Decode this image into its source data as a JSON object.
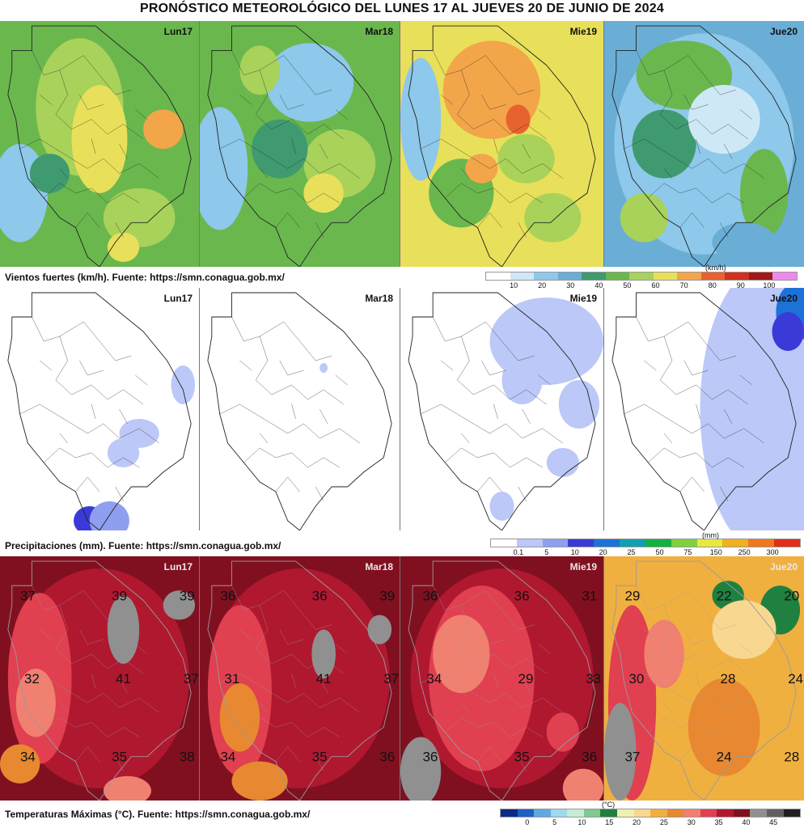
{
  "title": "PRONÓSTICO METEOROLÓGICO DEL LUNES 17 AL JUEVES 20 DE JUNIO DE 2024",
  "days": [
    "Lun17",
    "Mar18",
    "Mie19",
    "Jue20"
  ],
  "wind": {
    "caption": "Vientos fuertes (km/h).  Fuente: https://smn.conagua.gob.mx/",
    "unit": "(km/h)",
    "ticks": [
      "10",
      "20",
      "30",
      "40",
      "50",
      "60",
      "70",
      "80",
      "90",
      "100"
    ],
    "colors": [
      "#ffffff",
      "#cfe8f5",
      "#8ec8ea",
      "#6aaed6",
      "#3f9a70",
      "#6ab74e",
      "#a8d25a",
      "#e8e05a",
      "#f3a54a",
      "#e8622f",
      "#d03020",
      "#a01818",
      "#ee88ee"
    ]
  },
  "precip": {
    "caption": "Precipitaciones (mm).  Fuente: https://smn.conagua.gob.mx/",
    "unit": "(mm)",
    "ticks": [
      "0.1",
      "5",
      "10",
      "20",
      "25",
      "50",
      "75",
      "150",
      "250",
      "300"
    ],
    "colors": [
      "#ffffff",
      "#bcc8f7",
      "#8f9ff0",
      "#3a3ad8",
      "#1d72d8",
      "#10a0b0",
      "#14b040",
      "#80d040",
      "#e8e840",
      "#f0b020",
      "#f07820",
      "#e03018"
    ]
  },
  "temp": {
    "caption": "Temperaturas Máximas (°C).  Fuente: https://smn.conagua.gob.mx/",
    "unit": "(°C)",
    "ticks": [
      "0",
      "5",
      "10",
      "15",
      "20",
      "25",
      "30",
      "35",
      "40",
      "45"
    ],
    "colors": [
      "#0c2a8a",
      "#2060c0",
      "#60a8e0",
      "#a0d8f0",
      "#c8ecd8",
      "#80c890",
      "#208040",
      "#f0f0b0",
      "#f8d890",
      "#f0b040",
      "#e88830",
      "#f08070",
      "#e04050",
      "#b01830",
      "#801020",
      "#909090",
      "#606060",
      "#202020"
    ],
    "labels": [
      [
        "37",
        "39",
        "39",
        "32",
        "41",
        "37",
        "34",
        "35",
        "38"
      ],
      [
        "36",
        "36",
        "39",
        "31",
        "41",
        "37",
        "34",
        "35",
        "36"
      ],
      [
        "36",
        "36",
        "31",
        "34",
        "29",
        "33",
        "36",
        "35",
        "36"
      ],
      [
        "29",
        "22",
        "20",
        "30",
        "28",
        "24",
        "37",
        "24",
        "28"
      ]
    ]
  }
}
